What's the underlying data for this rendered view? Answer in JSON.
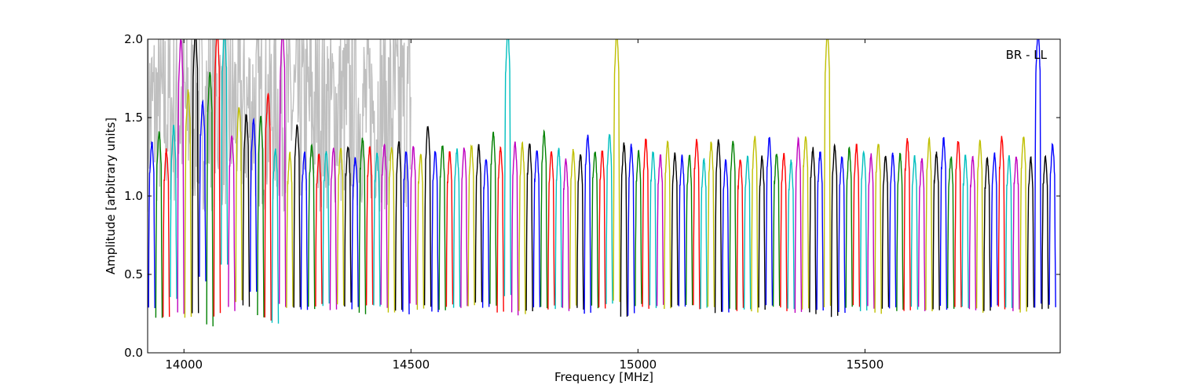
{
  "chart_data": {
    "type": "line",
    "title": "",
    "annotation": "BR - LL",
    "xlabel": "Frequency [MHz]",
    "ylabel": "Amplitude [arbitrary units]",
    "xlim": [
      13920,
      15930
    ],
    "ylim": [
      0.0,
      2.0
    ],
    "xticks": [
      14000,
      14500,
      15000,
      15500
    ],
    "yticks": [
      0.0,
      0.5,
      1.0,
      1.5,
      2.0
    ],
    "xtick_labels": [
      "14000",
      "14500",
      "15000",
      "15500"
    ],
    "ytick_labels": [
      "0.0",
      "0.5",
      "1.0",
      "1.5",
      "2.0"
    ],
    "grid": false,
    "legend": "none",
    "channel_width_mhz": 15.6,
    "background_series": {
      "color": "#bfbfbf",
      "x_range": [
        13920,
        14500
      ],
      "description_values": {
        "typical_min": 0.4,
        "typical_max": 2.0
      }
    },
    "color_cycle": [
      "#0000ff",
      "#008000",
      "#ff0000",
      "#00bfbf",
      "#bf00bf",
      "#bfbf00",
      "#000000"
    ],
    "channels": [
      {
        "x_start": 13922,
        "x_end": 13936,
        "peak": 1.29,
        "min": 0.29,
        "color": "#0000ff"
      },
      {
        "x_start": 13938,
        "x_end": 13952,
        "peak": 1.36,
        "min": 0.22,
        "color": "#008000"
      },
      {
        "x_start": 13954,
        "x_end": 13968,
        "peak": 1.24,
        "min": 0.22,
        "color": "#ff0000"
      },
      {
        "x_start": 13970,
        "x_end": 13984,
        "peak": 1.39,
        "min": 0.35,
        "color": "#00bfbf"
      },
      {
        "x_start": 13986,
        "x_end": 14000,
        "peak": 1.95,
        "min": 0.25,
        "color": "#bf00bf"
      },
      {
        "x_start": 14002,
        "x_end": 14016,
        "peak": 1.62,
        "min": 0.22,
        "color": "#bfbf00"
      },
      {
        "x_start": 14018,
        "x_end": 14032,
        "peak": 2.0,
        "min": 0.24,
        "color": "#000000"
      },
      {
        "x_start": 14034,
        "x_end": 14048,
        "peak": 1.55,
        "min": 0.47,
        "color": "#0000ff"
      },
      {
        "x_start": 14050,
        "x_end": 14064,
        "peak": 1.73,
        "min": 0.18,
        "color": "#008000"
      },
      {
        "x_start": 14066,
        "x_end": 14080,
        "peak": 2.0,
        "min": 0.24,
        "color": "#ff0000"
      },
      {
        "x_start": 14082,
        "x_end": 14096,
        "peak": 2.0,
        "min": 0.55,
        "color": "#00bfbf"
      },
      {
        "x_start": 14098,
        "x_end": 14112,
        "peak": 1.34,
        "min": 0.28,
        "color": "#bf00bf"
      },
      {
        "x_start": 14114,
        "x_end": 14128,
        "peak": 1.52,
        "min": 0.33,
        "color": "#bfbf00"
      },
      {
        "x_start": 14130,
        "x_end": 14144,
        "peak": 1.47,
        "min": 0.3,
        "color": "#000000"
      },
      {
        "x_start": 14146,
        "x_end": 14160,
        "peak": 1.43,
        "min": 0.4,
        "color": "#0000ff"
      },
      {
        "x_start": 14162,
        "x_end": 14176,
        "peak": 1.45,
        "min": 0.24,
        "color": "#008000"
      },
      {
        "x_start": 14178,
        "x_end": 14192,
        "peak": 1.6,
        "min": 0.22,
        "color": "#ff0000"
      },
      {
        "x_start": 14194,
        "x_end": 14208,
        "peak": 1.25,
        "min": 0.2,
        "color": "#00bfbf"
      },
      {
        "x_start": 14210,
        "x_end": 14224,
        "peak": 2.0,
        "min": 0.3,
        "color": "#bf00bf"
      },
      {
        "x_start": 14226,
        "x_end": 14240,
        "peak": 1.22,
        "min": 0.3,
        "color": "#bfbf00"
      },
      {
        "x_start": 14242,
        "x_end": 14256,
        "peak": 1.4,
        "min": 0.3,
        "color": "#000000"
      },
      {
        "x_start": 14258,
        "x_end": 14272,
        "peak": 1.23,
        "min": 0.28,
        "color": "#0000ff"
      },
      {
        "x_start": 14274,
        "x_end": 14288,
        "peak": 1.27,
        "min": 0.28,
        "color": "#008000"
      },
      {
        "x_start": 14290,
        "x_end": 14304,
        "peak": 1.21,
        "min": 0.31,
        "color": "#ff0000"
      },
      {
        "x_start": 14306,
        "x_end": 14320,
        "peak": 1.24,
        "min": 0.3,
        "color": "#00bfbf"
      },
      {
        "x_start": 14322,
        "x_end": 14336,
        "peak": 1.25,
        "min": 0.28,
        "color": "#bf00bf"
      },
      {
        "x_start": 14338,
        "x_end": 14352,
        "peak": 1.26,
        "min": 0.3,
        "color": "#bfbf00"
      },
      {
        "x_start": 14354,
        "x_end": 14368,
        "peak": 1.27,
        "min": 0.31,
        "color": "#000000"
      },
      {
        "x_start": 14370,
        "x_end": 14384,
        "peak": 1.19,
        "min": 0.28,
        "color": "#0000ff"
      },
      {
        "x_start": 14386,
        "x_end": 14400,
        "peak": 1.32,
        "min": 0.25,
        "color": "#008000"
      },
      {
        "x_start": 14402,
        "x_end": 14416,
        "peak": 1.26,
        "min": 0.3,
        "color": "#ff0000"
      },
      {
        "x_start": 14418,
        "x_end": 14432,
        "peak": 1.22,
        "min": 0.3,
        "color": "#00bfbf"
      },
      {
        "x_start": 14434,
        "x_end": 14448,
        "peak": 1.28,
        "min": 0.3,
        "color": "#bf00bf"
      },
      {
        "x_start": 14450,
        "x_end": 14464,
        "peak": 1.26,
        "min": 0.25,
        "color": "#bfbf00"
      },
      {
        "x_start": 14466,
        "x_end": 14480,
        "peak": 1.3,
        "min": 0.27,
        "color": "#000000"
      },
      {
        "x_start": 14482,
        "x_end": 14496,
        "peak": 1.23,
        "min": 0.26,
        "color": "#0000ff"
      },
      {
        "x_start": 14498,
        "x_end": 14512,
        "peak": 1.26,
        "min": 0.3,
        "color": "#bf00bf"
      },
      {
        "x_start": 14514,
        "x_end": 14528,
        "peak": 1.22,
        "min": 0.28,
        "color": "#bfbf00"
      },
      {
        "x_start": 14530,
        "x_end": 14544,
        "peak": 1.4,
        "min": 0.3,
        "color": "#000000"
      },
      {
        "x_start": 14546,
        "x_end": 14560,
        "peak": 1.23,
        "min": 0.27,
        "color": "#0000ff"
      },
      {
        "x_start": 14562,
        "x_end": 14576,
        "peak": 1.27,
        "min": 0.28,
        "color": "#008000"
      },
      {
        "x_start": 14578,
        "x_end": 14592,
        "peak": 1.23,
        "min": 0.3,
        "color": "#ff0000"
      },
      {
        "x_start": 14594,
        "x_end": 14608,
        "peak": 1.24,
        "min": 0.3,
        "color": "#00bfbf"
      },
      {
        "x_start": 14610,
        "x_end": 14624,
        "peak": 1.26,
        "min": 0.3,
        "color": "#bf00bf"
      },
      {
        "x_start": 14626,
        "x_end": 14640,
        "peak": 1.27,
        "min": 0.3,
        "color": "#bfbf00"
      },
      {
        "x_start": 14642,
        "x_end": 14656,
        "peak": 1.27,
        "min": 0.31,
        "color": "#000000"
      },
      {
        "x_start": 14658,
        "x_end": 14672,
        "peak": 1.19,
        "min": 0.29,
        "color": "#0000ff"
      },
      {
        "x_start": 14674,
        "x_end": 14688,
        "peak": 1.35,
        "min": 0.3,
        "color": "#008000"
      },
      {
        "x_start": 14690,
        "x_end": 14704,
        "peak": 1.26,
        "min": 0.27,
        "color": "#ff0000"
      },
      {
        "x_start": 14706,
        "x_end": 14720,
        "peak": 2.0,
        "min": 0.36,
        "color": "#00bfbf"
      },
      {
        "x_start": 14722,
        "x_end": 14736,
        "peak": 1.29,
        "min": 0.25,
        "color": "#bf00bf"
      },
      {
        "x_start": 14738,
        "x_end": 14752,
        "peak": 1.28,
        "min": 0.26,
        "color": "#bfbf00"
      },
      {
        "x_start": 14754,
        "x_end": 14768,
        "peak": 1.28,
        "min": 0.28,
        "color": "#000000"
      },
      {
        "x_start": 14770,
        "x_end": 14784,
        "peak": 1.24,
        "min": 0.3,
        "color": "#0000ff"
      },
      {
        "x_start": 14786,
        "x_end": 14800,
        "peak": 1.35,
        "min": 0.28,
        "color": "#008000"
      },
      {
        "x_start": 14802,
        "x_end": 14816,
        "peak": 1.23,
        "min": 0.29,
        "color": "#ff0000"
      },
      {
        "x_start": 14818,
        "x_end": 14832,
        "peak": 1.25,
        "min": 0.29,
        "color": "#00bfbf"
      },
      {
        "x_start": 14834,
        "x_end": 14848,
        "peak": 1.18,
        "min": 0.28,
        "color": "#bf00bf"
      },
      {
        "x_start": 14850,
        "x_end": 14864,
        "peak": 1.24,
        "min": 0.29,
        "color": "#bfbf00"
      },
      {
        "x_start": 14866,
        "x_end": 14880,
        "peak": 1.22,
        "min": 0.28,
        "color": "#000000"
      },
      {
        "x_start": 14882,
        "x_end": 14896,
        "peak": 1.34,
        "min": 0.26,
        "color": "#0000ff"
      },
      {
        "x_start": 14898,
        "x_end": 14912,
        "peak": 1.24,
        "min": 0.29,
        "color": "#008000"
      },
      {
        "x_start": 14914,
        "x_end": 14928,
        "peak": 1.24,
        "min": 0.28,
        "color": "#ff0000"
      },
      {
        "x_start": 14930,
        "x_end": 14944,
        "peak": 1.34,
        "min": 0.3,
        "color": "#00bfbf"
      },
      {
        "x_start": 14946,
        "x_end": 14960,
        "peak": 2.0,
        "min": 0.33,
        "color": "#bfbf00"
      },
      {
        "x_start": 14962,
        "x_end": 14976,
        "peak": 1.28,
        "min": 0.24,
        "color": "#000000"
      },
      {
        "x_start": 14978,
        "x_end": 14992,
        "peak": 1.27,
        "min": 0.25,
        "color": "#0000ff"
      },
      {
        "x_start": 14994,
        "x_end": 15008,
        "peak": 1.24,
        "min": 0.3,
        "color": "#008000"
      },
      {
        "x_start": 15010,
        "x_end": 15024,
        "peak": 1.31,
        "min": 0.29,
        "color": "#ff0000"
      },
      {
        "x_start": 15026,
        "x_end": 15040,
        "peak": 1.23,
        "min": 0.3,
        "color": "#00bfbf"
      },
      {
        "x_start": 15042,
        "x_end": 15056,
        "peak": 1.21,
        "min": 0.3,
        "color": "#bf00bf"
      },
      {
        "x_start": 15058,
        "x_end": 15072,
        "peak": 1.3,
        "min": 0.28,
        "color": "#bfbf00"
      },
      {
        "x_start": 15074,
        "x_end": 15088,
        "peak": 1.22,
        "min": 0.29,
        "color": "#000000"
      },
      {
        "x_start": 15090,
        "x_end": 15104,
        "peak": 1.2,
        "min": 0.29,
        "color": "#0000ff"
      },
      {
        "x_start": 15106,
        "x_end": 15120,
        "peak": 1.21,
        "min": 0.3,
        "color": "#008000"
      },
      {
        "x_start": 15122,
        "x_end": 15136,
        "peak": 1.31,
        "min": 0.29,
        "color": "#ff0000"
      },
      {
        "x_start": 15138,
        "x_end": 15152,
        "peak": 1.18,
        "min": 0.29,
        "color": "#00bfbf"
      },
      {
        "x_start": 15154,
        "x_end": 15168,
        "peak": 1.29,
        "min": 0.28,
        "color": "#bfbf00"
      },
      {
        "x_start": 15170,
        "x_end": 15184,
        "peak": 1.31,
        "min": 0.26,
        "color": "#000000"
      },
      {
        "x_start": 15186,
        "x_end": 15200,
        "peak": 1.18,
        "min": 0.27,
        "color": "#0000ff"
      },
      {
        "x_start": 15202,
        "x_end": 15216,
        "peak": 1.3,
        "min": 0.28,
        "color": "#008000"
      },
      {
        "x_start": 15218,
        "x_end": 15232,
        "peak": 1.19,
        "min": 0.28,
        "color": "#ff0000"
      },
      {
        "x_start": 15234,
        "x_end": 15248,
        "peak": 1.2,
        "min": 0.28,
        "color": "#00bfbf"
      },
      {
        "x_start": 15250,
        "x_end": 15264,
        "peak": 1.33,
        "min": 0.27,
        "color": "#bfbf00"
      },
      {
        "x_start": 15266,
        "x_end": 15280,
        "peak": 1.2,
        "min": 0.28,
        "color": "#000000"
      },
      {
        "x_start": 15282,
        "x_end": 15296,
        "peak": 1.32,
        "min": 0.29,
        "color": "#0000ff"
      },
      {
        "x_start": 15298,
        "x_end": 15312,
        "peak": 1.22,
        "min": 0.3,
        "color": "#008000"
      },
      {
        "x_start": 15314,
        "x_end": 15328,
        "peak": 1.22,
        "min": 0.28,
        "color": "#ff0000"
      },
      {
        "x_start": 15330,
        "x_end": 15344,
        "peak": 1.17,
        "min": 0.28,
        "color": "#00bfbf"
      },
      {
        "x_start": 15346,
        "x_end": 15360,
        "peak": 1.31,
        "min": 0.27,
        "color": "#bf00bf"
      },
      {
        "x_start": 15362,
        "x_end": 15376,
        "peak": 1.33,
        "min": 0.28,
        "color": "#bfbf00"
      },
      {
        "x_start": 15378,
        "x_end": 15392,
        "peak": 1.25,
        "min": 0.26,
        "color": "#000000"
      },
      {
        "x_start": 15394,
        "x_end": 15408,
        "peak": 1.23,
        "min": 0.28,
        "color": "#0000ff"
      },
      {
        "x_start": 15410,
        "x_end": 15424,
        "peak": 2.0,
        "min": 0.3,
        "color": "#bfbf00"
      },
      {
        "x_start": 15426,
        "x_end": 15440,
        "peak": 1.27,
        "min": 0.24,
        "color": "#000000"
      },
      {
        "x_start": 15442,
        "x_end": 15456,
        "peak": 1.2,
        "min": 0.25,
        "color": "#0000ff"
      },
      {
        "x_start": 15458,
        "x_end": 15472,
        "peak": 1.25,
        "min": 0.28,
        "color": "#008000"
      },
      {
        "x_start": 15474,
        "x_end": 15488,
        "peak": 1.27,
        "min": 0.29,
        "color": "#ff0000"
      },
      {
        "x_start": 15490,
        "x_end": 15504,
        "peak": 1.24,
        "min": 0.28,
        "color": "#00bfbf"
      },
      {
        "x_start": 15506,
        "x_end": 15520,
        "peak": 1.21,
        "min": 0.29,
        "color": "#bf00bf"
      },
      {
        "x_start": 15522,
        "x_end": 15536,
        "peak": 1.29,
        "min": 0.26,
        "color": "#bfbf00"
      },
      {
        "x_start": 15538,
        "x_end": 15552,
        "peak": 1.21,
        "min": 0.28,
        "color": "#000000"
      },
      {
        "x_start": 15554,
        "x_end": 15568,
        "peak": 1.22,
        "min": 0.29,
        "color": "#0000ff"
      },
      {
        "x_start": 15570,
        "x_end": 15584,
        "peak": 1.22,
        "min": 0.28,
        "color": "#008000"
      },
      {
        "x_start": 15586,
        "x_end": 15600,
        "peak": 1.31,
        "min": 0.28,
        "color": "#ff0000"
      },
      {
        "x_start": 15602,
        "x_end": 15616,
        "peak": 1.2,
        "min": 0.29,
        "color": "#00bfbf"
      },
      {
        "x_start": 15618,
        "x_end": 15632,
        "peak": 1.19,
        "min": 0.28,
        "color": "#bf00bf"
      },
      {
        "x_start": 15634,
        "x_end": 15648,
        "peak": 1.31,
        "min": 0.27,
        "color": "#bfbf00"
      },
      {
        "x_start": 15650,
        "x_end": 15664,
        "peak": 1.22,
        "min": 0.28,
        "color": "#000000"
      },
      {
        "x_start": 15666,
        "x_end": 15680,
        "peak": 1.32,
        "min": 0.29,
        "color": "#0000ff"
      },
      {
        "x_start": 15682,
        "x_end": 15696,
        "peak": 1.2,
        "min": 0.29,
        "color": "#008000"
      },
      {
        "x_start": 15698,
        "x_end": 15712,
        "peak": 1.3,
        "min": 0.28,
        "color": "#ff0000"
      },
      {
        "x_start": 15714,
        "x_end": 15728,
        "peak": 1.2,
        "min": 0.28,
        "color": "#00bfbf"
      },
      {
        "x_start": 15730,
        "x_end": 15744,
        "peak": 1.2,
        "min": 0.28,
        "color": "#bf00bf"
      },
      {
        "x_start": 15746,
        "x_end": 15760,
        "peak": 1.3,
        "min": 0.27,
        "color": "#bfbf00"
      },
      {
        "x_start": 15762,
        "x_end": 15776,
        "peak": 1.19,
        "min": 0.28,
        "color": "#000000"
      },
      {
        "x_start": 15778,
        "x_end": 15792,
        "peak": 1.22,
        "min": 0.29,
        "color": "#0000ff"
      },
      {
        "x_start": 15794,
        "x_end": 15808,
        "peak": 1.32,
        "min": 0.28,
        "color": "#ff0000"
      },
      {
        "x_start": 15810,
        "x_end": 15824,
        "peak": 1.2,
        "min": 0.29,
        "color": "#00bfbf"
      },
      {
        "x_start": 15826,
        "x_end": 15840,
        "peak": 1.2,
        "min": 0.28,
        "color": "#bf00bf"
      },
      {
        "x_start": 15842,
        "x_end": 15856,
        "peak": 1.33,
        "min": 0.27,
        "color": "#bfbf00"
      },
      {
        "x_start": 15858,
        "x_end": 15872,
        "peak": 1.19,
        "min": 0.28,
        "color": "#000000"
      },
      {
        "x_start": 15874,
        "x_end": 15888,
        "peak": 2.0,
        "min": 0.3,
        "color": "#0000ff"
      },
      {
        "x_start": 15890,
        "x_end": 15904,
        "peak": 1.2,
        "min": 0.28,
        "color": "#000000"
      },
      {
        "x_start": 15906,
        "x_end": 15920,
        "peak": 1.28,
        "min": 0.3,
        "color": "#0000ff"
      }
    ]
  }
}
